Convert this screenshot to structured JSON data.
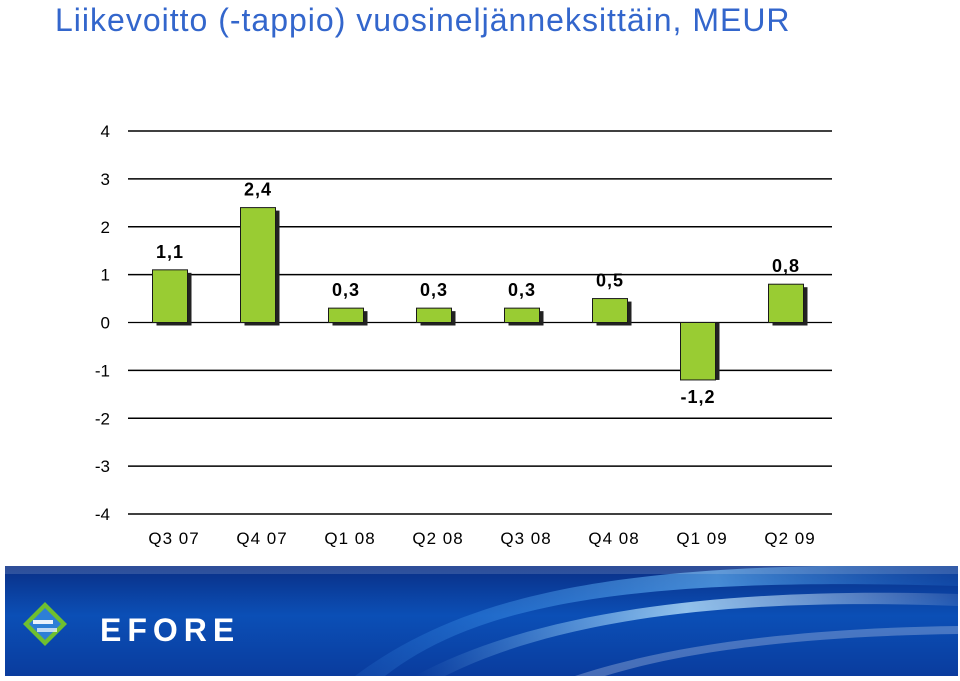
{
  "page": {
    "title": "Liikevoitto (-tappio) vuosineljänneksittäin, MEUR"
  },
  "chart_data": {
    "type": "bar",
    "title": "Liikevoitto (-tappio) vuosineljänneksittäin, MEUR",
    "categories": [
      "Q3 07",
      "Q4 07",
      "Q1 08",
      "Q2 08",
      "Q3 08",
      "Q4 08",
      "Q1 09",
      "Q2 09"
    ],
    "series": [
      {
        "values": [
          1.1,
          2.4,
          0.3,
          0.3,
          0.3,
          0.5,
          -1.2,
          0.8
        ],
        "labels": [
          "1,1",
          "2,4",
          "0,3",
          "0,3",
          "0,3",
          "0,5",
          "-1,2",
          "0,8"
        ],
        "color": "#99cc33"
      }
    ],
    "ylim": [
      -4,
      4
    ],
    "yticks": [
      4,
      3,
      2,
      1,
      0,
      -1,
      -2,
      -3,
      -4
    ],
    "ytick_labels": [
      "4",
      "3",
      "2",
      "1",
      "0",
      "-1",
      "-2",
      "-3",
      "-4"
    ],
    "grid": true,
    "legend": "none",
    "xlabel": "",
    "ylabel": ""
  },
  "branding": {
    "logo_text": "EFORE",
    "logo_icon": "efore-logo-icon",
    "banner_color": "#0b4fb6"
  }
}
